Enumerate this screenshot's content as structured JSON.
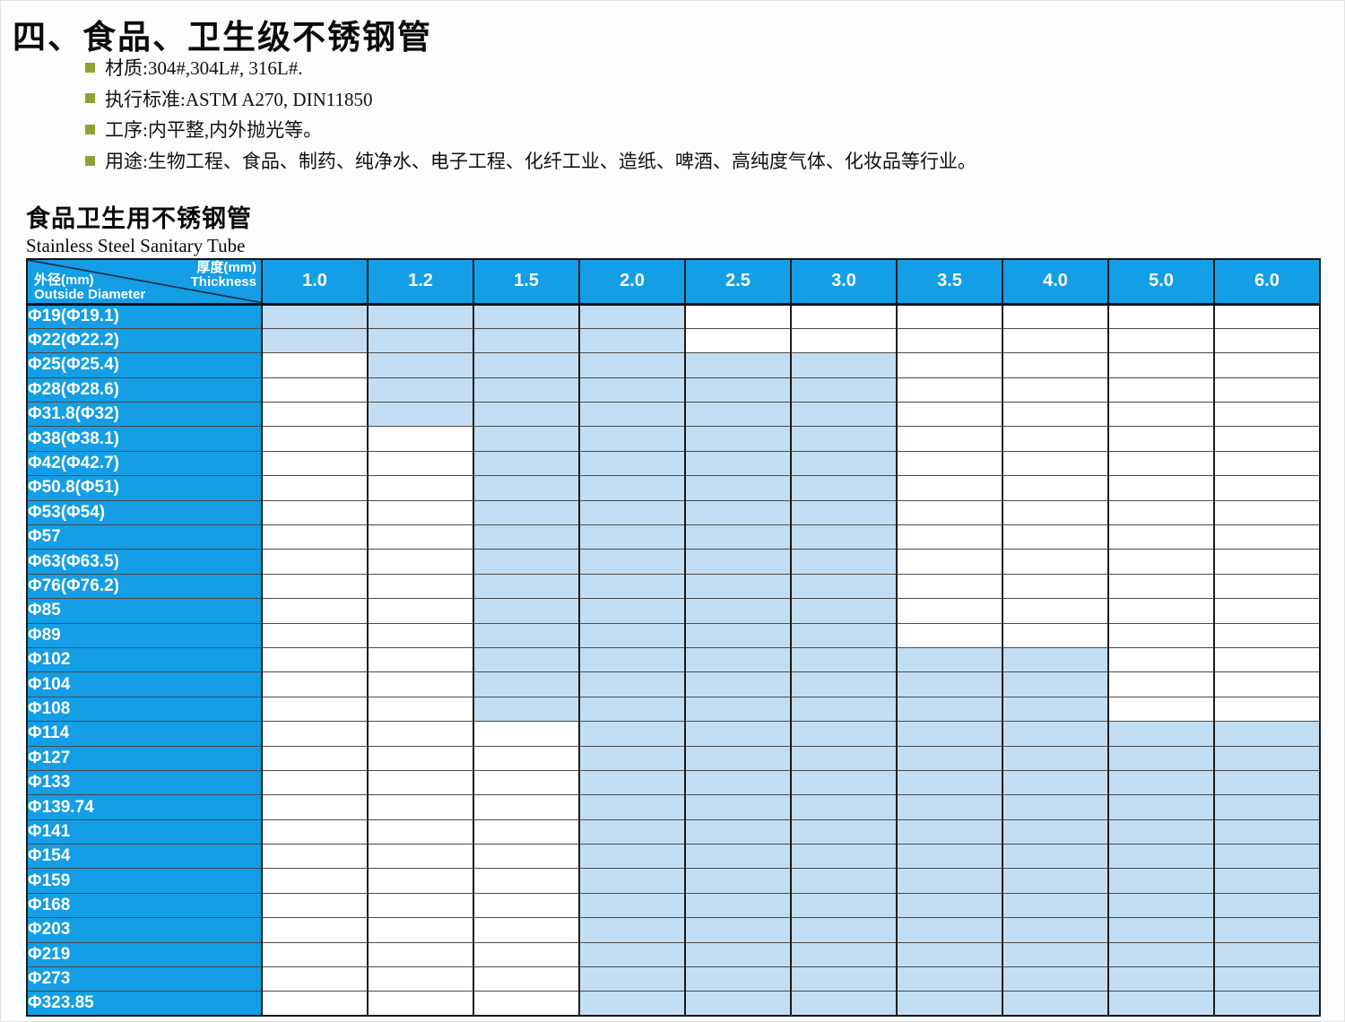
{
  "page": {
    "title": "四、食品、卫生级不锈钢管"
  },
  "specs": [
    "材质:304#,304L#, 316L#.",
    "执行标准:ASTM A270, DIN11850",
    "工序:内平整,内外抛光等。",
    "用途:生物工程、食品、制药、纯净水、电子工程、化纤工业、造纸、啤酒、高纯度气体、化妆品等行业。"
  ],
  "table": {
    "title_cn": "食品卫生用不锈钢管",
    "title_en": "Stainless Steel Sanitary Tube",
    "corner": {
      "thickness_cn": "厚度(mm)",
      "thickness_en": "Thickness",
      "diameter_cn": "外径(mm)",
      "diameter_en": "Outside Diameter"
    },
    "thickness_columns": [
      "1.0",
      "1.2",
      "1.5",
      "2.0",
      "2.5",
      "3.0",
      "3.5",
      "4.0",
      "5.0",
      "6.0"
    ],
    "rows": [
      {
        "label": "Φ19(Φ19.1)",
        "available": [
          "1.0",
          "1.2",
          "1.5",
          "2.0"
        ]
      },
      {
        "label": "Φ22(Φ22.2)",
        "available": [
          "1.0",
          "1.2",
          "1.5",
          "2.0"
        ]
      },
      {
        "label": "Φ25(Φ25.4)",
        "available": [
          "1.2",
          "1.5",
          "2.0",
          "2.5",
          "3.0"
        ]
      },
      {
        "label": "Φ28(Φ28.6)",
        "available": [
          "1.2",
          "1.5",
          "2.0",
          "2.5",
          "3.0"
        ]
      },
      {
        "label": "Φ31.8(Φ32)",
        "available": [
          "1.2",
          "1.5",
          "2.0",
          "2.5",
          "3.0"
        ]
      },
      {
        "label": "Φ38(Φ38.1)",
        "available": [
          "1.5",
          "2.0",
          "2.5",
          "3.0"
        ]
      },
      {
        "label": "Φ42(Φ42.7)",
        "available": [
          "1.5",
          "2.0",
          "2.5",
          "3.0"
        ]
      },
      {
        "label": "Φ50.8(Φ51)",
        "available": [
          "1.5",
          "2.0",
          "2.5",
          "3.0"
        ]
      },
      {
        "label": "Φ53(Φ54)",
        "available": [
          "1.5",
          "2.0",
          "2.5",
          "3.0"
        ]
      },
      {
        "label": "Φ57",
        "available": [
          "1.5",
          "2.0",
          "2.5",
          "3.0"
        ]
      },
      {
        "label": "Φ63(Φ63.5)",
        "available": [
          "1.5",
          "2.0",
          "2.5",
          "3.0"
        ]
      },
      {
        "label": "Φ76(Φ76.2)",
        "available": [
          "1.5",
          "2.0",
          "2.5",
          "3.0"
        ]
      },
      {
        "label": "Φ85",
        "available": [
          "1.5",
          "2.0",
          "2.5",
          "3.0"
        ]
      },
      {
        "label": "Φ89",
        "available": [
          "1.5",
          "2.0",
          "2.5",
          "3.0"
        ]
      },
      {
        "label": "Φ102",
        "available": [
          "1.5",
          "2.0",
          "2.5",
          "3.0",
          "3.5",
          "4.0"
        ]
      },
      {
        "label": "Φ104",
        "available": [
          "1.5",
          "2.0",
          "2.5",
          "3.0",
          "3.5",
          "4.0"
        ]
      },
      {
        "label": "Φ108",
        "available": [
          "1.5",
          "2.0",
          "2.5",
          "3.0",
          "3.5",
          "4.0"
        ]
      },
      {
        "label": "Φ114",
        "available": [
          "2.0",
          "2.5",
          "3.0",
          "3.5",
          "4.0",
          "5.0",
          "6.0"
        ]
      },
      {
        "label": "Φ127",
        "available": [
          "2.0",
          "2.5",
          "3.0",
          "3.5",
          "4.0",
          "5.0",
          "6.0"
        ]
      },
      {
        "label": "Φ133",
        "available": [
          "2.0",
          "2.5",
          "3.0",
          "3.5",
          "4.0",
          "5.0",
          "6.0"
        ]
      },
      {
        "label": "Φ139.74",
        "available": [
          "2.0",
          "2.5",
          "3.0",
          "3.5",
          "4.0",
          "5.0",
          "6.0"
        ]
      },
      {
        "label": "Φ141",
        "available": [
          "2.0",
          "2.5",
          "3.0",
          "3.5",
          "4.0",
          "5.0",
          "6.0"
        ]
      },
      {
        "label": "Φ154",
        "available": [
          "2.0",
          "2.5",
          "3.0",
          "3.5",
          "4.0",
          "5.0",
          "6.0"
        ]
      },
      {
        "label": "Φ159",
        "available": [
          "2.0",
          "2.5",
          "3.0",
          "3.5",
          "4.0",
          "5.0",
          "6.0"
        ]
      },
      {
        "label": "Φ168",
        "available": [
          "2.0",
          "2.5",
          "3.0",
          "3.5",
          "4.0",
          "5.0",
          "6.0"
        ]
      },
      {
        "label": "Φ203",
        "available": [
          "2.0",
          "2.5",
          "3.0",
          "3.5",
          "4.0",
          "5.0",
          "6.0"
        ]
      },
      {
        "label": "Φ219",
        "available": [
          "2.0",
          "2.5",
          "3.0",
          "3.5",
          "4.0",
          "5.0",
          "6.0"
        ]
      },
      {
        "label": "Φ273",
        "available": [
          "2.0",
          "2.5",
          "3.0",
          "3.5",
          "4.0",
          "5.0",
          "6.0"
        ]
      },
      {
        "label": "Φ323.85",
        "available": [
          "2.0",
          "2.5",
          "3.0",
          "3.5",
          "4.0",
          "5.0",
          "6.0"
        ]
      }
    ]
  },
  "colors": {
    "header_blue": "#149EE5",
    "highlight_blue": "#C3DEF2",
    "bullet_green": "#8CA532",
    "grid_dark": "#1b1b1b"
  }
}
